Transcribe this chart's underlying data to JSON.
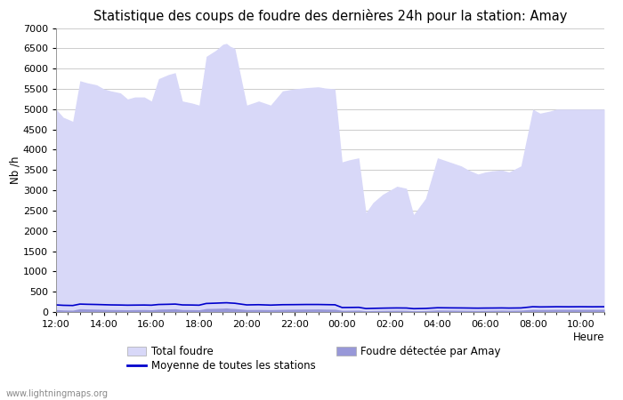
{
  "title": "Statistique des coups de foudre des dernières 24h pour la station: Amay",
  "ylabel": "Nb /h",
  "xlabel": "Heure",
  "watermark": "www.lightningmaps.org",
  "ylim": [
    0,
    7000
  ],
  "yticks": [
    0,
    500,
    1000,
    1500,
    2000,
    2500,
    3000,
    3500,
    4000,
    4500,
    5000,
    5500,
    6000,
    6500,
    7000
  ],
  "xtick_labels": [
    "12:00",
    "14:00",
    "16:00",
    "18:00",
    "20:00",
    "22:00",
    "00:00",
    "02:00",
    "04:00",
    "06:00",
    "08:00",
    "10:00"
  ],
  "xtick_positions": [
    0,
    2,
    4,
    6,
    8,
    10,
    12,
    14,
    16,
    18,
    20,
    22
  ],
  "total_foudre_x": [
    0.0,
    0.3,
    0.7,
    1.0,
    1.3,
    1.7,
    2.0,
    2.3,
    2.7,
    3.0,
    3.3,
    3.7,
    4.0,
    4.3,
    4.7,
    5.0,
    5.3,
    5.7,
    6.0,
    6.3,
    6.7,
    7.0,
    7.15,
    7.3,
    7.5,
    8.0,
    8.5,
    9.0,
    9.5,
    10.0,
    10.5,
    11.0,
    11.3,
    11.7,
    12.0,
    12.3,
    12.7,
    13.0,
    13.3,
    13.7,
    14.0,
    14.3,
    14.7,
    15.0,
    15.5,
    16.0,
    16.5,
    17.0,
    17.3,
    17.5,
    17.7,
    18.0,
    18.3,
    18.7,
    19.0,
    19.5,
    20.0,
    20.3,
    20.7,
    21.0,
    21.5,
    22.0,
    22.5,
    23.0
  ],
  "total_foudre_y": [
    5000,
    4800,
    4700,
    5700,
    5650,
    5600,
    5500,
    5450,
    5400,
    5250,
    5300,
    5300,
    5200,
    5750,
    5850,
    5900,
    5200,
    5150,
    5100,
    6300,
    6450,
    6600,
    6620,
    6550,
    6500,
    5100,
    5200,
    5100,
    5450,
    5500,
    5530,
    5550,
    5520,
    5500,
    3700,
    3750,
    3800,
    2450,
    2700,
    2900,
    3000,
    3100,
    3050,
    2400,
    2800,
    3800,
    3700,
    3600,
    3500,
    3450,
    3400,
    3450,
    3480,
    3500,
    3450,
    3600,
    5000,
    4900,
    4950,
    5000,
    5000,
    5000,
    5000,
    5000
  ],
  "foudre_amay_x": [
    0.0,
    0.3,
    0.7,
    1.0,
    1.3,
    1.7,
    2.0,
    2.3,
    2.7,
    3.0,
    3.3,
    3.7,
    4.0,
    4.3,
    4.7,
    5.0,
    5.3,
    5.7,
    6.0,
    6.3,
    6.7,
    7.0,
    7.15,
    7.3,
    7.5,
    8.0,
    8.5,
    9.0,
    9.5,
    10.0,
    10.5,
    11.0,
    11.3,
    11.7,
    12.0,
    12.3,
    12.7,
    13.0,
    13.3,
    13.7,
    14.0,
    14.3,
    14.7,
    15.0,
    15.5,
    16.0,
    16.5,
    17.0,
    17.3,
    17.5,
    17.7,
    18.0,
    18.3,
    18.7,
    19.0,
    19.5,
    20.0,
    20.3,
    20.7,
    21.0,
    21.5,
    22.0,
    22.5,
    23.0
  ],
  "foudre_amay_y": [
    60,
    50,
    45,
    80,
    75,
    70,
    65,
    60,
    58,
    55,
    58,
    60,
    55,
    70,
    75,
    80,
    60,
    58,
    55,
    85,
    90,
    95,
    100,
    90,
    85,
    60,
    62,
    58,
    65,
    70,
    72,
    75,
    70,
    68,
    40,
    42,
    45,
    30,
    35,
    38,
    40,
    42,
    40,
    30,
    35,
    48,
    45,
    42,
    40,
    38,
    38,
    40,
    42,
    45,
    42,
    45,
    65,
    62,
    63,
    65,
    65,
    65,
    65,
    65
  ],
  "moyenne_x": [
    0.0,
    0.3,
    0.7,
    1.0,
    1.3,
    1.7,
    2.0,
    2.3,
    2.7,
    3.0,
    3.3,
    3.7,
    4.0,
    4.3,
    4.7,
    5.0,
    5.3,
    5.7,
    6.0,
    6.3,
    6.7,
    7.0,
    7.15,
    7.3,
    7.5,
    8.0,
    8.5,
    9.0,
    9.5,
    10.0,
    10.5,
    11.0,
    11.3,
    11.7,
    12.0,
    12.3,
    12.7,
    13.0,
    13.3,
    13.7,
    14.0,
    14.3,
    14.7,
    15.0,
    15.5,
    16.0,
    16.5,
    17.0,
    17.3,
    17.5,
    17.7,
    18.0,
    18.3,
    18.7,
    19.0,
    19.5,
    20.0,
    20.3,
    20.7,
    21.0,
    21.5,
    22.0,
    22.5,
    23.0
  ],
  "moyenne_y": [
    175,
    165,
    160,
    195,
    190,
    185,
    180,
    175,
    172,
    168,
    170,
    172,
    168,
    185,
    190,
    195,
    175,
    172,
    168,
    210,
    218,
    225,
    228,
    222,
    215,
    175,
    180,
    170,
    180,
    182,
    185,
    185,
    182,
    178,
    110,
    112,
    115,
    85,
    90,
    95,
    98,
    100,
    98,
    82,
    88,
    105,
    102,
    100,
    98,
    96,
    95,
    97,
    98,
    100,
    97,
    100,
    130,
    125,
    127,
    130,
    128,
    130,
    128,
    130
  ],
  "color_total": "#d8d8f8",
  "color_amay": "#9898d8",
  "color_moyenne": "#0000cc",
  "background_color": "#ffffff",
  "grid_color": "#cccccc",
  "title_fontsize": 10.5,
  "label_fontsize": 8.5,
  "tick_fontsize": 8,
  "watermark_fontsize": 7
}
